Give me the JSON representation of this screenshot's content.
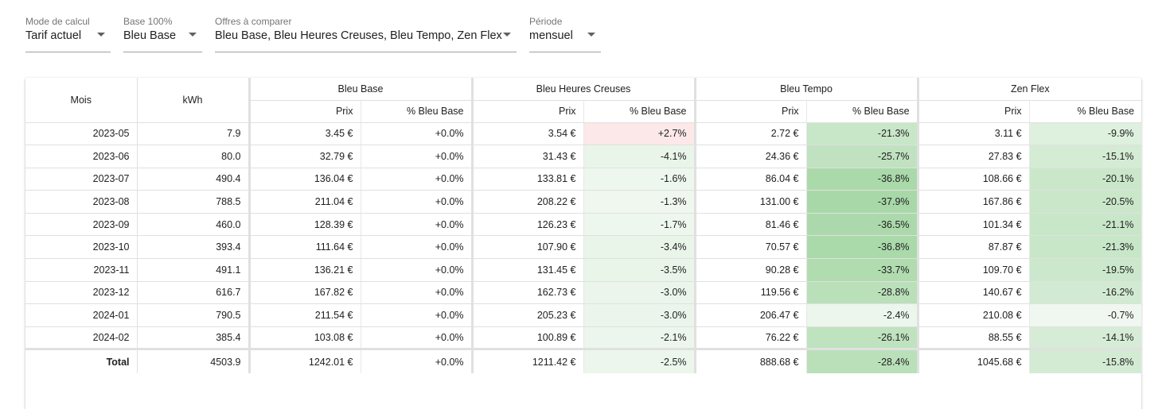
{
  "filters": {
    "mode": {
      "label": "Mode de calcul",
      "value": "Tarif actuel"
    },
    "base": {
      "label": "Base 100%",
      "value": "Bleu Base"
    },
    "offres": {
      "label": "Offres à comparer",
      "value": "Bleu Base, Bleu Heures Creuses, Bleu Tempo, Zen Flex"
    },
    "periode": {
      "label": "Période",
      "value": "mensuel"
    }
  },
  "table": {
    "col_mois": "Mois",
    "col_kwh": "kWh",
    "col_prix": "Prix",
    "col_pct": "% Bleu Base",
    "groups": [
      "Bleu Base",
      "Bleu Heures Creuses",
      "Bleu Tempo",
      "Zen Flex"
    ],
    "rows": [
      {
        "mois": "2023-05",
        "kwh": "7.9",
        "cells": [
          [
            "3.45 €",
            "+0.0%"
          ],
          [
            "3.54 €",
            "+2.7%"
          ],
          [
            "2.72 €",
            "-21.3%"
          ],
          [
            "3.11 €",
            "-9.9%"
          ]
        ]
      },
      {
        "mois": "2023-06",
        "kwh": "80.0",
        "cells": [
          [
            "32.79 €",
            "+0.0%"
          ],
          [
            "31.43 €",
            "-4.1%"
          ],
          [
            "24.36 €",
            "-25.7%"
          ],
          [
            "27.83 €",
            "-15.1%"
          ]
        ]
      },
      {
        "mois": "2023-07",
        "kwh": "490.4",
        "cells": [
          [
            "136.04 €",
            "+0.0%"
          ],
          [
            "133.81 €",
            "-1.6%"
          ],
          [
            "86.04 €",
            "-36.8%"
          ],
          [
            "108.66 €",
            "-20.1%"
          ]
        ]
      },
      {
        "mois": "2023-08",
        "kwh": "788.5",
        "cells": [
          [
            "211.04 €",
            "+0.0%"
          ],
          [
            "208.22 €",
            "-1.3%"
          ],
          [
            "131.00 €",
            "-37.9%"
          ],
          [
            "167.86 €",
            "-20.5%"
          ]
        ]
      },
      {
        "mois": "2023-09",
        "kwh": "460.0",
        "cells": [
          [
            "128.39 €",
            "+0.0%"
          ],
          [
            "126.23 €",
            "-1.7%"
          ],
          [
            "81.46 €",
            "-36.5%"
          ],
          [
            "101.34 €",
            "-21.1%"
          ]
        ]
      },
      {
        "mois": "2023-10",
        "kwh": "393.4",
        "cells": [
          [
            "111.64 €",
            "+0.0%"
          ],
          [
            "107.90 €",
            "-3.4%"
          ],
          [
            "70.57 €",
            "-36.8%"
          ],
          [
            "87.87 €",
            "-21.3%"
          ]
        ]
      },
      {
        "mois": "2023-11",
        "kwh": "491.1",
        "cells": [
          [
            "136.21 €",
            "+0.0%"
          ],
          [
            "131.45 €",
            "-3.5%"
          ],
          [
            "90.28 €",
            "-33.7%"
          ],
          [
            "109.70 €",
            "-19.5%"
          ]
        ]
      },
      {
        "mois": "2023-12",
        "kwh": "616.7",
        "cells": [
          [
            "167.82 €",
            "+0.0%"
          ],
          [
            "162.73 €",
            "-3.0%"
          ],
          [
            "119.56 €",
            "-28.8%"
          ],
          [
            "140.67 €",
            "-16.2%"
          ]
        ]
      },
      {
        "mois": "2024-01",
        "kwh": "790.5",
        "cells": [
          [
            "211.54 €",
            "+0.0%"
          ],
          [
            "205.23 €",
            "-3.0%"
          ],
          [
            "206.47 €",
            "-2.4%"
          ],
          [
            "210.08 €",
            "-0.7%"
          ]
        ]
      },
      {
        "mois": "2024-02",
        "kwh": "385.4",
        "cells": [
          [
            "103.08 €",
            "+0.0%"
          ],
          [
            "100.89 €",
            "-2.1%"
          ],
          [
            "76.22 €",
            "-26.1%"
          ],
          [
            "88.55 €",
            "-14.1%"
          ]
        ]
      }
    ],
    "total": {
      "mois": "Total",
      "kwh": "4503.9",
      "cells": [
        [
          "1242.01 €",
          "+0.0%"
        ],
        [
          "1211.42 €",
          "-2.5%"
        ],
        [
          "888.68 €",
          "-28.4%"
        ],
        [
          "1045.68 €",
          "-15.8%"
        ]
      ]
    }
  },
  "colors": {
    "positive": "#fce8e8",
    "negative_strong": "#a8d8a8",
    "negative_light": "#f1f8f1"
  }
}
